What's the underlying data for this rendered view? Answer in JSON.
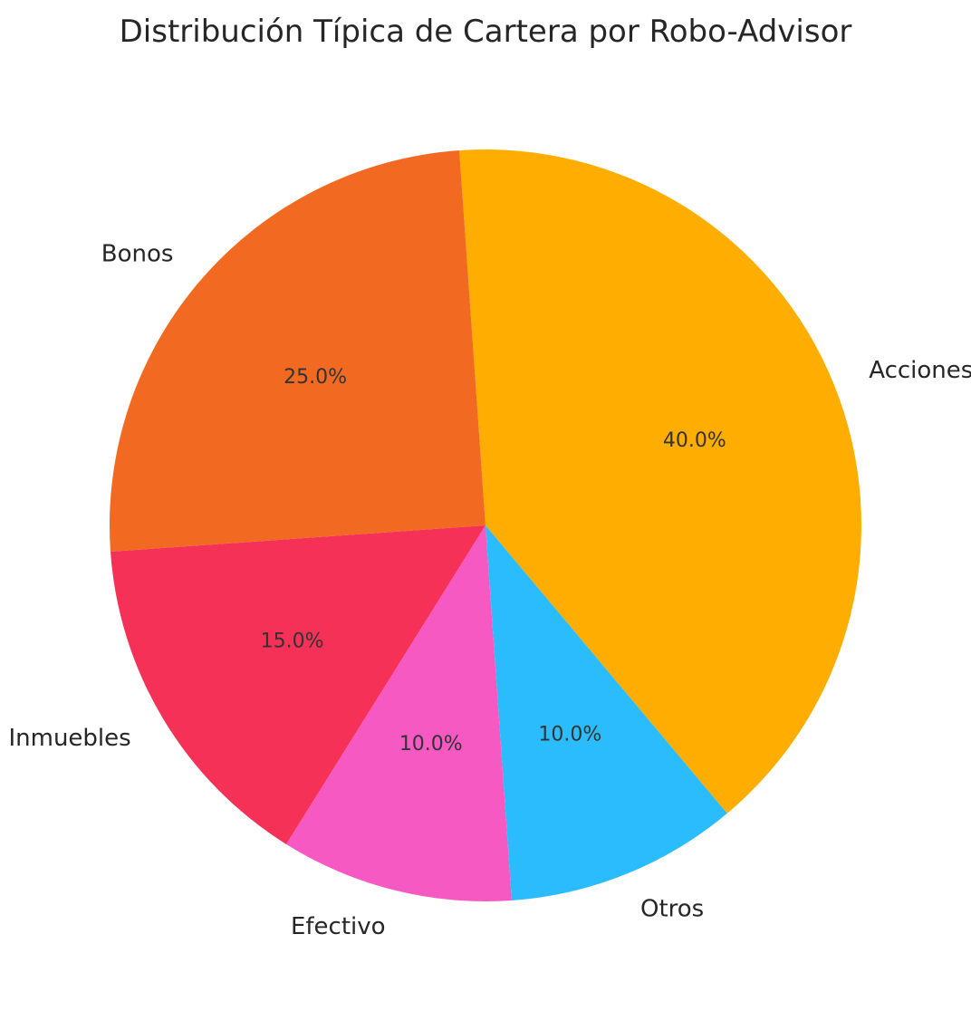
{
  "chart_data": {
    "type": "pie",
    "title": "Distribución Típica de Cartera por Robo-Advisor",
    "start_angle_deg": 310,
    "direction": "counterclockwise",
    "slices": [
      {
        "label": "Acciones",
        "value": 40,
        "pct_label": "40.0%",
        "color": "#FFAD00"
      },
      {
        "label": "Bonos",
        "value": 25,
        "pct_label": "25.0%",
        "color": "#F26A21"
      },
      {
        "label": "Inmuebles",
        "value": 15,
        "pct_label": "15.0%",
        "color": "#F53157"
      },
      {
        "label": "Efectivo",
        "value": 10,
        "pct_label": "10.0%",
        "color": "#F759C2"
      },
      {
        "label": "Otros",
        "value": 10,
        "pct_label": "10.0%",
        "color": "#2ABCFC"
      }
    ]
  }
}
